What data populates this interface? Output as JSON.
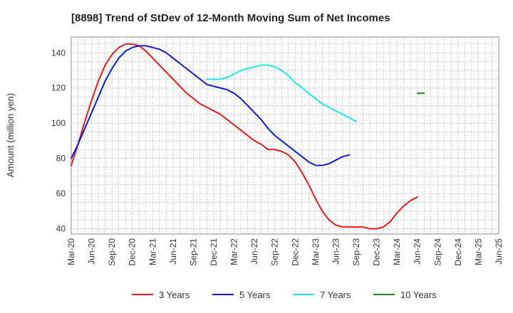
{
  "chart_data": {
    "type": "line",
    "title": "[8898]  Trend of StDev of 12-Month Moving Sum of Net Incomes",
    "xlabel": "",
    "ylabel": "Amount (million yen)",
    "ylim": [
      37,
      149
    ],
    "yticks": [
      40,
      60,
      80,
      100,
      120,
      140
    ],
    "x_ticks": [
      "Mar-20",
      "Jun-20",
      "Sep-20",
      "Dec-20",
      "Mar-21",
      "Jun-21",
      "Sep-21",
      "Dec-21",
      "Mar-22",
      "Jun-22",
      "Sep-22",
      "Dec-22",
      "Mar-23",
      "Jun-23",
      "Sep-23",
      "Dec-23",
      "Mar-24",
      "Jun-24",
      "Sep-24",
      "Dec-24",
      "Mar-25",
      "Jun-25"
    ],
    "grid": true,
    "legend_position": "bottom",
    "series": [
      {
        "name": "3 Years",
        "color": "#e8191a",
        "start_index": 0,
        "values": [
          76,
          88,
          101,
          113,
          124,
          133,
          139,
          143,
          145,
          145,
          144,
          141,
          137,
          133,
          129,
          125,
          121,
          117,
          114,
          111,
          109,
          107,
          105,
          102,
          99,
          96,
          93,
          90,
          88,
          85,
          85,
          84,
          82,
          78,
          72,
          65,
          57,
          50,
          45,
          42,
          41,
          41,
          41,
          41,
          40,
          40,
          41,
          44,
          49,
          53,
          56,
          58
        ]
      },
      {
        "name": "5 Years",
        "color": "#0a1ecf",
        "start_index": 0,
        "values": [
          80,
          88,
          97,
          106,
          115,
          124,
          131,
          137,
          141,
          143,
          144,
          144,
          143,
          142,
          140,
          137,
          134,
          131,
          128,
          125,
          122,
          121,
          120,
          119,
          117,
          114,
          110,
          106,
          102,
          97,
          93,
          90,
          87,
          84,
          81,
          78,
          76,
          76,
          77,
          79,
          81,
          82
        ]
      },
      {
        "name": "7 Years",
        "color": "#1ee6ee",
        "start_index": 20,
        "values": [
          125,
          125,
          125,
          126,
          128,
          130,
          131,
          132,
          133,
          133,
          132,
          130,
          127,
          123,
          120,
          117,
          114,
          111,
          109,
          107,
          105,
          103,
          101
        ]
      },
      {
        "name": "10 Years",
        "color": "#1e8a1e",
        "start_index": 51,
        "values": [
          117,
          117
        ]
      }
    ]
  }
}
